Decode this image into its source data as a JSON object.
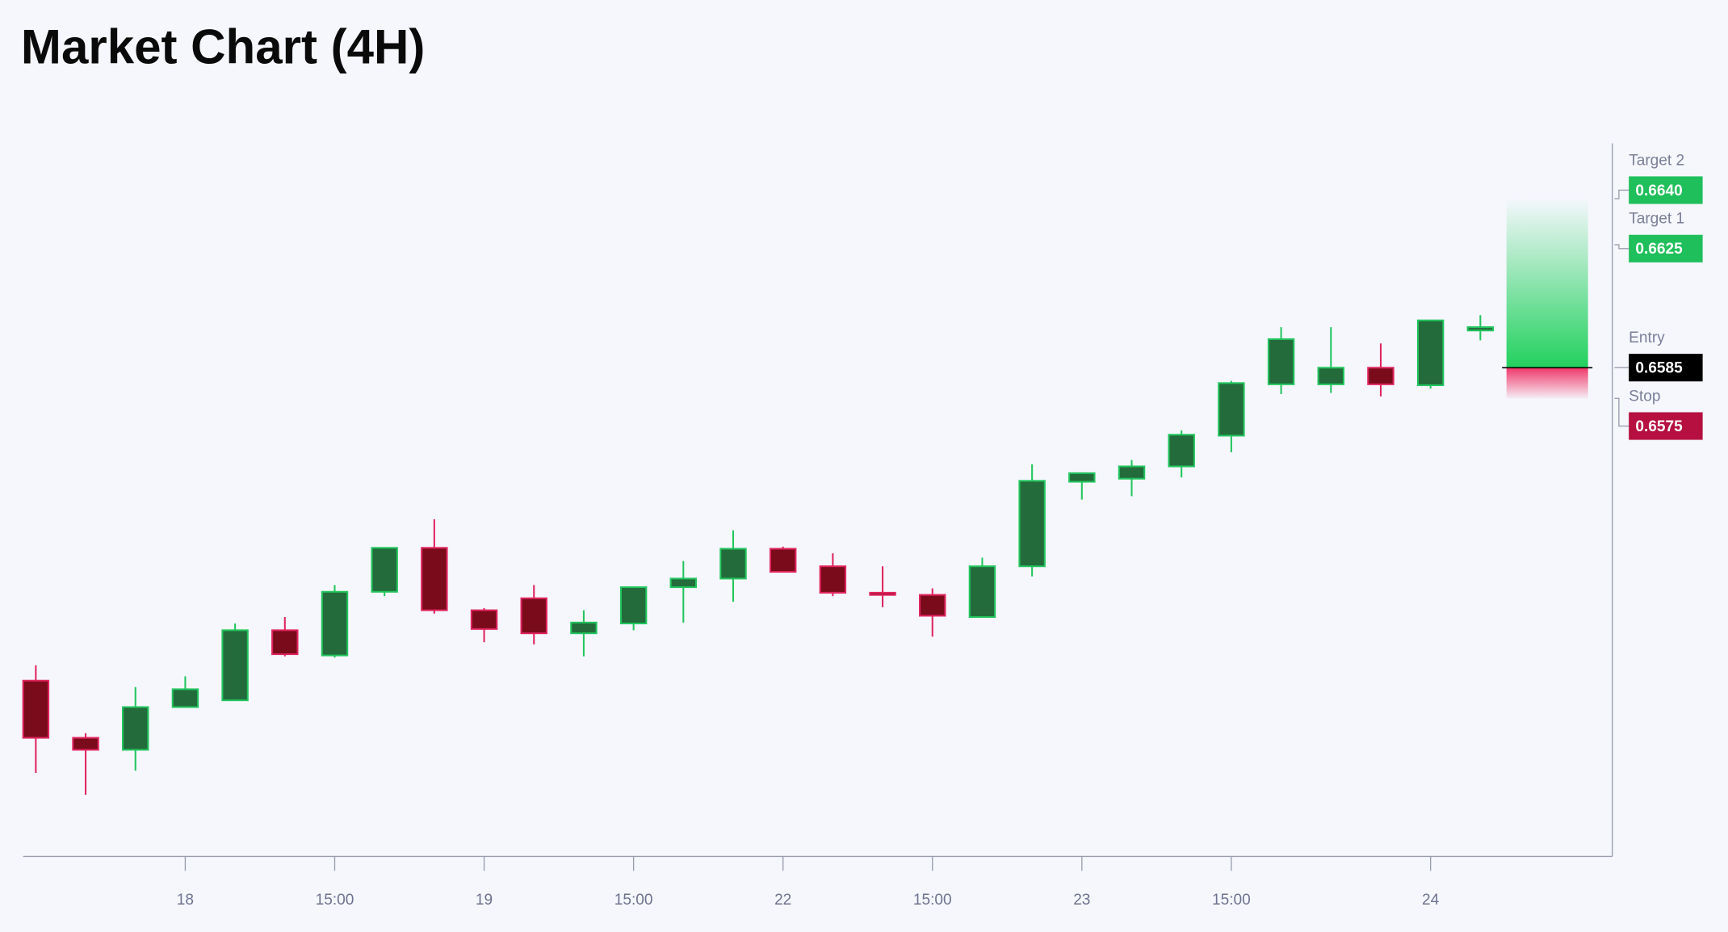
{
  "chart_data": {
    "type": "candlestick",
    "title": "Market Chart (4H)",
    "categories": [
      null,
      null,
      null,
      "18",
      null,
      null,
      "15:00",
      null,
      null,
      "19",
      null,
      null,
      "15:00",
      null,
      null,
      "22",
      null,
      null,
      "15:00",
      null,
      null,
      "23",
      null,
      null,
      "15:00",
      null,
      null,
      null,
      "24",
      null
    ],
    "open": [
      0.64832,
      0.64646,
      0.64607,
      0.64746,
      0.64768,
      0.64996,
      0.64914,
      0.65121,
      0.65264,
      0.65061,
      0.651,
      0.64986,
      0.65018,
      0.65136,
      0.65164,
      0.65261,
      0.65204,
      0.65118,
      0.65111,
      0.65039,
      0.65204,
      0.65479,
      0.65489,
      0.65529,
      0.65629,
      0.65796,
      0.65796,
      0.6585,
      0.65793,
      0.65971
    ],
    "high": [
      0.64882,
      0.64661,
      0.64811,
      0.64846,
      0.65018,
      0.65039,
      0.65143,
      0.65264,
      0.65357,
      0.65068,
      0.65143,
      0.65061,
      0.65136,
      0.65221,
      0.65321,
      0.65268,
      0.65246,
      0.65204,
      0.65132,
      0.65232,
      0.65536,
      0.65507,
      0.6555,
      0.65646,
      0.65807,
      0.65982,
      0.65982,
      0.65929,
      0.66004,
      0.66021
    ],
    "low": [
      0.64532,
      0.64461,
      0.64539,
      0.64746,
      0.64768,
      0.64911,
      0.64907,
      0.65107,
      0.6505,
      0.64957,
      0.6495,
      0.64911,
      0.64996,
      0.65021,
      0.65089,
      0.65186,
      0.65107,
      0.65071,
      0.64975,
      0.65039,
      0.65171,
      0.65421,
      0.65432,
      0.65493,
      0.65575,
      0.65764,
      0.65768,
      0.65757,
      0.65782,
      0.65939
    ],
    "close": [
      0.64646,
      0.64607,
      0.64746,
      0.64804,
      0.64996,
      0.64918,
      0.65121,
      0.65264,
      0.65061,
      0.65,
      0.64986,
      0.65021,
      0.65136,
      0.65164,
      0.65261,
      0.65186,
      0.65118,
      0.65111,
      0.65043,
      0.65204,
      0.65482,
      0.65507,
      0.65529,
      0.65632,
      0.658,
      0.65943,
      0.6585,
      0.65796,
      0.66004,
      0.65982
    ],
    "up_color": "#22c55e",
    "down_color": "#e0245e",
    "ylim": [
      0.6426,
      0.6658
    ],
    "levels": [
      {
        "name": "Target 2",
        "price": {
          "value": 0.664,
          "label": "0.6640"
        },
        "color": "#1fbf5b"
      },
      {
        "name": "Target 1",
        "price": {
          "value": 0.6625,
          "label": "0.6625"
        },
        "color": "#1fbf5b"
      },
      {
        "name": "Entry",
        "price": {
          "value": 0.6585,
          "label": "0.6585"
        },
        "color": "#000000"
      },
      {
        "name": "Stop",
        "price": {
          "value": 0.6575,
          "label": "0.6575"
        },
        "color": "#b5103f"
      }
    ]
  }
}
